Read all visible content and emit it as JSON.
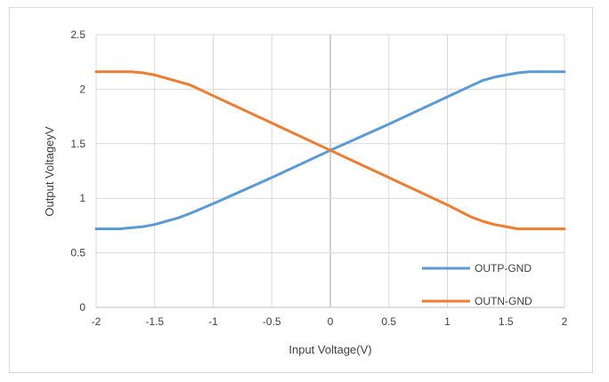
{
  "chart_data": {
    "type": "line",
    "title": "",
    "xlabel": "Input Voltage(V)",
    "ylabel": "Output VoltageyV",
    "xlim": [
      -2,
      2
    ],
    "ylim": [
      0,
      2.5
    ],
    "x_ticks": [
      "-2",
      "-1.5",
      "-1",
      "-0.5",
      "0",
      "0.5",
      "1",
      "1.5",
      "2"
    ],
    "y_ticks": [
      "0",
      "0.5",
      "1",
      "1.5",
      "2",
      "2.5"
    ],
    "grid": true,
    "legend_position": "bottom-right",
    "series": [
      {
        "name": "OUTP-GND",
        "color": "#5b9bd5",
        "x": [
          -2,
          -1.8,
          -1.7,
          -1.6,
          -1.5,
          -1.4,
          -1.3,
          -1.2,
          -1,
          -0.5,
          0,
          0.5,
          1,
          1.2,
          1.3,
          1.4,
          1.5,
          1.6,
          1.7,
          1.8,
          2
        ],
        "y": [
          0.72,
          0.72,
          0.73,
          0.74,
          0.76,
          0.79,
          0.82,
          0.86,
          0.95,
          1.19,
          1.44,
          1.68,
          1.93,
          2.03,
          2.08,
          2.11,
          2.13,
          2.15,
          2.16,
          2.16,
          2.16
        ]
      },
      {
        "name": "OUTN-GND",
        "color": "#ed7d31",
        "x": [
          -2,
          -1.8,
          -1.7,
          -1.6,
          -1.5,
          -1.4,
          -1.3,
          -1.2,
          -1,
          -0.5,
          0,
          0.5,
          1,
          1.2,
          1.3,
          1.4,
          1.5,
          1.6,
          1.7,
          1.8,
          2
        ],
        "y": [
          2.16,
          2.16,
          2.16,
          2.15,
          2.13,
          2.1,
          2.07,
          2.04,
          1.94,
          1.69,
          1.44,
          1.19,
          0.94,
          0.83,
          0.79,
          0.76,
          0.74,
          0.72,
          0.72,
          0.72,
          0.72
        ]
      }
    ]
  }
}
